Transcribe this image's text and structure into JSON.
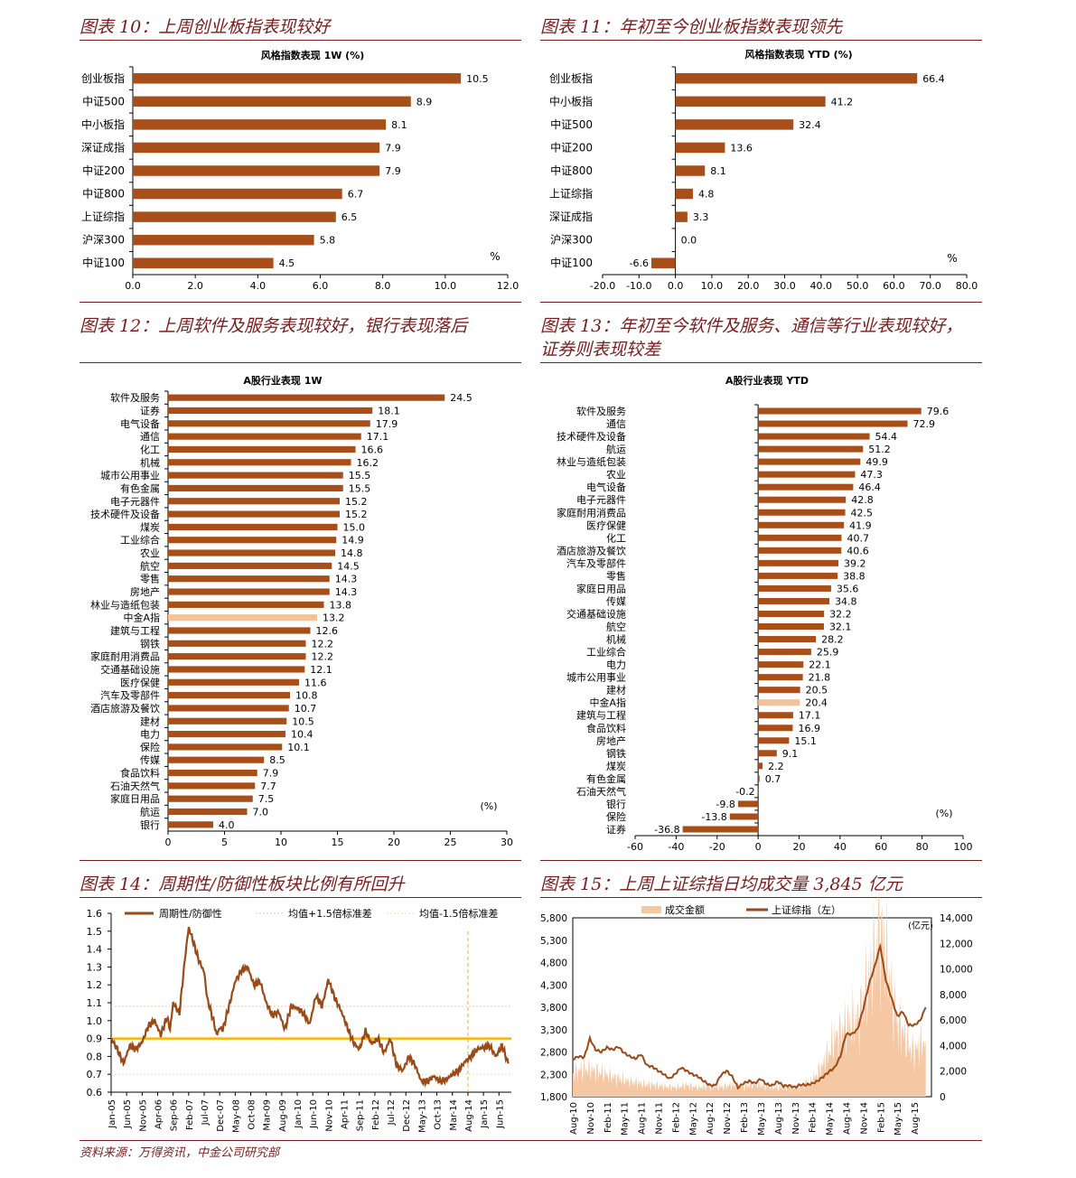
{
  "colors": {
    "bar": "#a84e18",
    "highlight": "#f2c29b",
    "title": "#7a1c1c",
    "yellow": "#f5b800",
    "area": "#f5c8a3",
    "line": "#9b4a17"
  },
  "panels": {
    "p10": {
      "title": "图表 10：上周创业板指表现较好"
    },
    "p11": {
      "title": "图表 11：年初至今创业板指数表现领先"
    },
    "p12": {
      "title": "图表 12：上周软件及服务表现较好，银行表现落后"
    },
    "p13": {
      "title_line1": "图表 13：年初至今软件及服务、通信等行业表现较好，",
      "title_line2": "证券则表现较差"
    },
    "p14": {
      "title": "图表 14：周期性/防御性板块比例有所回升"
    },
    "p15": {
      "title": "图表 15：上周上证综指日均成交量 3,845 亿元"
    }
  },
  "footer": "资料来源：万得资讯，中金公司研究部",
  "chart_data": [
    {
      "id": "c10",
      "type": "bar",
      "orientation": "horizontal",
      "title": "风格指数表现 1W (%)",
      "unit": "%",
      "categories": [
        "创业板指",
        "中证500",
        "中小板指",
        "深证成指",
        "中证200",
        "中证800",
        "上证综指",
        "沪深300",
        "中证100"
      ],
      "values": [
        10.5,
        8.9,
        8.1,
        7.9,
        7.9,
        6.7,
        6.5,
        5.8,
        4.5
      ],
      "labels": [
        "10.5",
        "8.9",
        "8.1",
        "7.9",
        "7.9",
        "6.7",
        "6.5",
        "5.8",
        "4.5"
      ],
      "xlim": [
        0,
        12
      ],
      "ticks": [
        "0.0",
        "2.0",
        "4.0",
        "6.0",
        "8.0",
        "10.0",
        "12.0"
      ]
    },
    {
      "id": "c11",
      "type": "bar",
      "orientation": "horizontal",
      "title": "风格指数表现 YTD (%)",
      "unit": "%",
      "categories": [
        "创业板指",
        "中小板指",
        "中证500",
        "中证200",
        "中证800",
        "上证综指",
        "深证成指",
        "沪深300",
        "中证100"
      ],
      "values": [
        66.4,
        41.2,
        32.4,
        13.6,
        8.1,
        4.8,
        3.3,
        0.0,
        -6.6
      ],
      "labels": [
        "66.4",
        "41.2",
        "32.4",
        "13.6",
        "8.1",
        "4.8",
        "3.3",
        "0.0",
        "-6.6"
      ],
      "xlim": [
        -20,
        80
      ],
      "ticks": [
        "-20.0",
        "-10.0",
        "0.0",
        "10.0",
        "20.0",
        "30.0",
        "40.0",
        "50.0",
        "60.0",
        "70.0",
        "80.0"
      ]
    },
    {
      "id": "c12",
      "type": "bar",
      "orientation": "horizontal",
      "title": "A股行业表现 1W",
      "unit": "(%)",
      "highlight": "中金A指",
      "categories": [
        "软件及服务",
        "证券",
        "电气设备",
        "通信",
        "化工",
        "机械",
        "城市公用事业",
        "有色金属",
        "电子元器件",
        "技术硬件及设备",
        "煤炭",
        "工业综合",
        "农业",
        "航空",
        "零售",
        "房地产",
        "林业与造纸包装",
        "中金A指",
        "建筑与工程",
        "钢铁",
        "家庭耐用消费品",
        "交通基础设施",
        "医疗保健",
        "汽车及零部件",
        "酒店旅游及餐饮",
        "建材",
        "电力",
        "保险",
        "传媒",
        "食品饮料",
        "石油天然气",
        "家庭日用品",
        "航运",
        "银行"
      ],
      "values": [
        24.5,
        18.1,
        17.9,
        17.1,
        16.6,
        16.2,
        15.5,
        15.5,
        15.2,
        15.2,
        15.0,
        14.9,
        14.8,
        14.5,
        14.3,
        14.3,
        13.8,
        13.2,
        12.6,
        12.2,
        12.2,
        12.1,
        11.6,
        10.8,
        10.7,
        10.5,
        10.4,
        10.1,
        8.5,
        7.9,
        7.7,
        7.5,
        7.0,
        4.0
      ],
      "labels": [
        "24.5",
        "18.1",
        "17.9",
        "17.1",
        "16.6",
        "16.2",
        "15.5",
        "15.5",
        "15.2",
        "15.2",
        "15.0",
        "14.9",
        "14.8",
        "14.5",
        "14.3",
        "14.3",
        "13.8",
        "13.2",
        "12.6",
        "12.2",
        "12.2",
        "12.1",
        "11.6",
        "10.8",
        "10.7",
        "10.5",
        "10.4",
        "10.1",
        "8.5",
        "7.9",
        "7.7",
        "7.5",
        "7.0",
        "4.0"
      ],
      "xlim": [
        0,
        30
      ],
      "ticks": [
        "0",
        "5",
        "10",
        "15",
        "20",
        "25",
        "30"
      ]
    },
    {
      "id": "c13",
      "type": "bar",
      "orientation": "horizontal",
      "title": "A股行业表现 YTD",
      "unit": "(%)",
      "highlight": "中金A指",
      "categories": [
        "软件及服务",
        "通信",
        "技术硬件及设备",
        "航运",
        "林业与造纸包装",
        "农业",
        "电气设备",
        "电子元器件",
        "家庭耐用消费品",
        "医疗保健",
        "化工",
        "酒店旅游及餐饮",
        "汽车及零部件",
        "零售",
        "家庭日用品",
        "传媒",
        "交通基础设施",
        "航空",
        "机械",
        "工业综合",
        "电力",
        "城市公用事业",
        "建材",
        "中金A指",
        "建筑与工程",
        "食品饮料",
        "房地产",
        "钢铁",
        "煤炭",
        "有色金属",
        "石油天然气",
        "银行",
        "保险",
        "证券"
      ],
      "values": [
        79.6,
        72.9,
        54.4,
        51.2,
        49.9,
        47.3,
        46.4,
        42.8,
        42.5,
        41.9,
        40.7,
        40.6,
        39.2,
        38.8,
        35.6,
        34.8,
        32.2,
        32.1,
        28.2,
        25.9,
        22.1,
        21.8,
        20.5,
        20.4,
        17.1,
        16.9,
        15.1,
        9.1,
        2.2,
        0.7,
        -0.2,
        -9.8,
        -13.8,
        -36.8
      ],
      "labels": [
        "79.6",
        "72.9",
        "54.4",
        "51.2",
        "49.9",
        "47.3",
        "46.4",
        "42.8",
        "42.5",
        "41.9",
        "40.7",
        "40.6",
        "39.2",
        "38.8",
        "35.6",
        "34.8",
        "32.2",
        "32.1",
        "28.2",
        "25.9",
        "22.1",
        "21.8",
        "20.5",
        "20.4",
        "17.1",
        "16.9",
        "15.1",
        "9.1",
        "2.2",
        "0.7",
        "-0.2",
        "-9.8",
        "-13.8",
        "-36.8"
      ],
      "xlim": [
        -60,
        100
      ],
      "ticks": [
        "-60",
        "-40",
        "-20",
        "0",
        "20",
        "40",
        "60",
        "80",
        "100"
      ]
    },
    {
      "id": "c14",
      "type": "line",
      "title": "",
      "legend": [
        "周期性/防御性",
        "均值+1.5倍标准差",
        "均值-1.5倍标准差"
      ],
      "ylim": [
        0.6,
        1.6
      ],
      "yticks": [
        "1.6",
        "1.5",
        "1.4",
        "1.3",
        "1.2",
        "1.1",
        "1.0",
        "0.9",
        "0.8",
        "0.7",
        "0.6"
      ],
      "xticks": [
        "Jan-05",
        "Jun-05",
        "Nov-05",
        "Apr-06",
        "Sep-06",
        "Feb-07",
        "Jul-07",
        "Dec-07",
        "May-08",
        "Oct-08",
        "Mar-09",
        "Aug-09",
        "Jan-10",
        "Jun-10",
        "Nov-10",
        "Apr-11",
        "Sep-11",
        "Feb-12",
        "Jul-12",
        "Dec-12",
        "May-13",
        "Oct-13",
        "Mar-14",
        "Aug-14",
        "Jan-15",
        "Jun-15"
      ],
      "upper_band": 1.08,
      "lower_band": 0.7,
      "mean_line": 0.9,
      "marker_month": "Aug-14",
      "series": [
        {
          "name": "周期性/防御性",
          "x_month_index": [
            0,
            2,
            4,
            6,
            8,
            10,
            12,
            14,
            16,
            18,
            19,
            20,
            22,
            24,
            25,
            26,
            28,
            30,
            31,
            32,
            33,
            34,
            35,
            36,
            38,
            40,
            42,
            44,
            46,
            48,
            50,
            52,
            54,
            56,
            58,
            60,
            62,
            64,
            66,
            68,
            70,
            72,
            74,
            76,
            78,
            80,
            82,
            84,
            86,
            88,
            90,
            92,
            94,
            96,
            98,
            100,
            102,
            104,
            106,
            108,
            110,
            112,
            114,
            116,
            118,
            120,
            122,
            124,
            126,
            128
          ],
          "values": [
            0.9,
            0.84,
            0.76,
            0.86,
            0.84,
            0.88,
            0.97,
            1.0,
            0.92,
            1.02,
            0.95,
            1.1,
            1.04,
            1.38,
            1.52,
            1.47,
            1.35,
            1.27,
            1.12,
            1.06,
            1.0,
            0.92,
            0.96,
            0.95,
            1.08,
            1.22,
            1.28,
            1.3,
            1.2,
            1.22,
            1.1,
            1.03,
            1.05,
            0.95,
            1.08,
            1.07,
            1.04,
            0.98,
            1.14,
            1.08,
            1.23,
            1.13,
            1.06,
            0.97,
            0.88,
            0.84,
            0.94,
            0.87,
            0.9,
            0.82,
            0.9,
            0.75,
            0.72,
            0.8,
            0.75,
            0.66,
            0.66,
            0.69,
            0.66,
            0.67,
            0.7,
            0.72,
            0.77,
            0.8,
            0.84,
            0.85,
            0.86,
            0.8,
            0.86,
            0.76
          ]
        }
      ]
    },
    {
      "id": "c15",
      "type": "line+area",
      "title": "",
      "legend": [
        "成交金额",
        "上证综指（左）"
      ],
      "right_unit": "(亿元)",
      "ylim_left": [
        1800,
        5800
      ],
      "yticks_left": [
        "5,800",
        "5,300",
        "4,800",
        "4,300",
        "3,800",
        "3,300",
        "2,800",
        "2,300",
        "1,800"
      ],
      "ylim_right": [
        0,
        14000
      ],
      "yticks_right": [
        "14,000",
        "12,000",
        "10,000",
        "8,000",
        "6,000",
        "4,000",
        "2,000",
        "0"
      ],
      "xticks": [
        "Aug-10",
        "Nov-10",
        "Feb-11",
        "May-11",
        "Aug-11",
        "Nov-11",
        "Feb-12",
        "May-12",
        "Aug-12",
        "Nov-12",
        "Feb-13",
        "May-13",
        "Aug-13",
        "Nov-13",
        "Feb-14",
        "May-14",
        "Aug-14",
        "Nov-14",
        "Feb-15",
        "May-15",
        "Aug-15"
      ],
      "series": [
        {
          "name": "上证综指（左）",
          "x_month_index": [
            0,
            1,
            2,
            3,
            4,
            5,
            6,
            7,
            8,
            9,
            10,
            11,
            12,
            13,
            14,
            15,
            16,
            17,
            18,
            19,
            20,
            21,
            22,
            23,
            24,
            25,
            26,
            27,
            28,
            29,
            30,
            31,
            32,
            33,
            34,
            35,
            36,
            37,
            38,
            39,
            40,
            41,
            42,
            43,
            44,
            45,
            46,
            47,
            48,
            49,
            50,
            51,
            52,
            53,
            54,
            55,
            56,
            57,
            58,
            59,
            60,
            61,
            62
          ],
          "values": [
            2640,
            2700,
            2680,
            3100,
            2850,
            2800,
            2900,
            2850,
            2920,
            2780,
            2700,
            2650,
            2750,
            2500,
            2470,
            2380,
            2300,
            2200,
            2310,
            2450,
            2380,
            2300,
            2250,
            2150,
            2060,
            2050,
            2280,
            2380,
            2250,
            2000,
            2100,
            2150,
            2100,
            2200,
            2080,
            2050,
            2140,
            2040,
            2050,
            2010,
            2070,
            2060,
            2090,
            2150,
            2250,
            2360,
            2450,
            2700,
            3200,
            3200,
            3300,
            3750,
            4300,
            4700,
            5170,
            4400,
            4000,
            3600,
            3700,
            3400,
            3400,
            3500,
            3800
          ]
        },
        {
          "name": "成交金额",
          "x_month_index": [
            0,
            2,
            4,
            6,
            8,
            10,
            12,
            14,
            16,
            18,
            20,
            22,
            24,
            26,
            28,
            30,
            32,
            34,
            36,
            38,
            40,
            42,
            44,
            46,
            48,
            50,
            51,
            52,
            53,
            54,
            55,
            56,
            57,
            58,
            59,
            60,
            61,
            62
          ],
          "values": [
            1800,
            2200,
            2000,
            1700,
            1400,
            1200,
            1000,
            900,
            800,
            700,
            900,
            700,
            800,
            750,
            900,
            800,
            1000,
            800,
            700,
            700,
            800,
            1200,
            2500,
            4500,
            5500,
            6000,
            7500,
            9000,
            11000,
            13000,
            11000,
            8000,
            6000,
            5000,
            4000,
            3500,
            4000,
            4500
          ]
        }
      ]
    }
  ]
}
